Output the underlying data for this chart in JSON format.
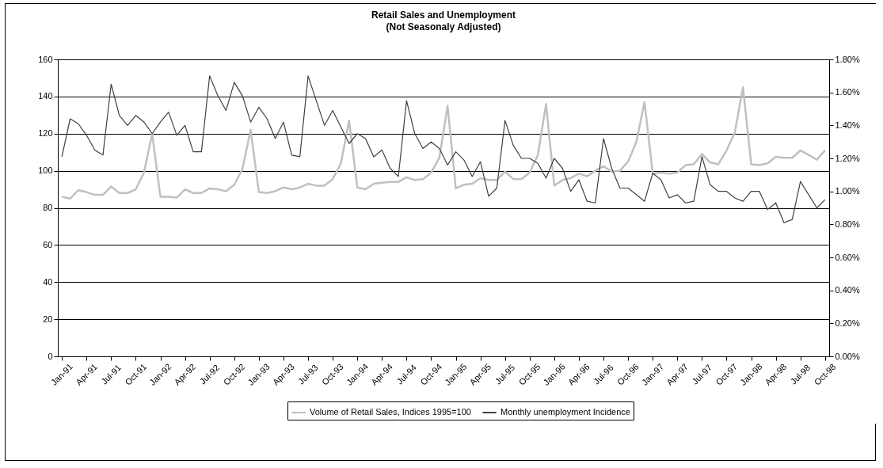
{
  "chart_data": {
    "type": "line",
    "title": "Retail Sales and Unemployment",
    "subtitle": "(Not Seasonaly Adjusted)",
    "categories": [
      "Jan-91",
      null,
      null,
      "Apr-91",
      null,
      null,
      "Jul-91",
      null,
      null,
      "Oct-91",
      null,
      null,
      "Jan-92",
      null,
      null,
      "Apr-92",
      null,
      null,
      "Jul-92",
      null,
      null,
      "Oct-92",
      null,
      null,
      "Jan-93",
      null,
      null,
      "Apr-93",
      null,
      null,
      "Jul-93",
      null,
      null,
      "Oct-93",
      null,
      null,
      "Jan-94",
      null,
      null,
      "Apr-94",
      null,
      null,
      "Jul-94",
      null,
      null,
      "Oct-94",
      null,
      null,
      "Jan-95",
      null,
      null,
      "Apr-95",
      null,
      null,
      "Jul-95",
      null,
      null,
      "Oct-95",
      null,
      null,
      "Jan-96",
      null,
      null,
      "Apr-96",
      null,
      null,
      "Jul-96",
      null,
      null,
      "Oct-96",
      null,
      null,
      "Jan-97",
      null,
      null,
      "Apr-97",
      null,
      null,
      "Jul-97",
      null,
      null,
      "Oct-97",
      null,
      null,
      "Jan-98",
      null,
      null,
      "Apr-98",
      null,
      null,
      "Jul-98",
      null,
      null,
      "Oct-98"
    ],
    "series": [
      {
        "name": "Volume of Retail Sales, Indices 1995=100",
        "color": "#c0c0c0",
        "values": [
          86,
          85,
          89.5,
          88.5,
          87,
          87,
          91.5,
          88,
          88,
          90,
          99,
          120,
          86,
          86,
          85.5,
          90,
          88,
          88,
          90.5,
          90,
          89,
          92.5,
          101,
          122,
          88.5,
          88,
          89,
          91,
          90,
          91,
          93,
          92,
          92,
          95.5,
          104,
          127,
          91,
          90,
          93,
          93.5,
          94,
          94,
          96.5,
          95,
          95.5,
          99,
          107,
          135,
          90.5,
          92.5,
          93,
          96,
          95,
          95,
          99.5,
          95.5,
          95.5,
          99,
          108.5,
          136,
          92,
          95,
          96,
          98.5,
          97,
          100,
          102.5,
          99.5,
          100,
          105,
          115.5,
          137,
          98.5,
          99,
          98.5,
          99,
          103,
          103.5,
          109,
          104.5,
          103.5,
          111,
          120.5,
          145,
          103.5,
          103,
          104,
          107.5,
          107,
          107,
          111,
          108.5,
          106,
          111
        ]
      },
      {
        "name": "Monthly unemployment Incidence",
        "color": "#404040",
        "axis": "y2",
        "values": [
          1.21,
          1.44,
          1.41,
          1.34,
          1.25,
          1.22,
          1.65,
          1.46,
          1.4,
          1.46,
          1.42,
          1.35,
          1.42,
          1.48,
          1.34,
          1.4,
          1.24,
          1.24,
          1.7,
          1.58,
          1.49,
          1.66,
          1.58,
          1.42,
          1.51,
          1.44,
          1.32,
          1.42,
          1.22,
          1.21,
          1.7,
          1.55,
          1.4,
          1.49,
          1.39,
          1.29,
          1.35,
          1.32,
          1.21,
          1.25,
          1.14,
          1.09,
          1.55,
          1.35,
          1.26,
          1.3,
          1.26,
          1.16,
          1.24,
          1.19,
          1.09,
          1.18,
          0.97,
          1.02,
          1.43,
          1.28,
          1.2,
          1.2,
          1.17,
          1.08,
          1.2,
          1.14,
          1.0,
          1.07,
          0.94,
          0.93,
          1.32,
          1.14,
          1.02,
          1.02,
          0.98,
          0.94,
          1.11,
          1.07,
          0.96,
          0.98,
          0.93,
          0.94,
          1.21,
          1.04,
          1.0,
          1.0,
          0.96,
          0.94,
          1.0,
          1.0,
          0.89,
          0.93,
          0.81,
          0.83,
          1.06,
          0.98,
          0.9,
          0.95
        ]
      }
    ],
    "ylim": [
      0,
      160
    ],
    "yticks": [
      0,
      20,
      40,
      60,
      80,
      100,
      120,
      140,
      160
    ],
    "y2lim": [
      0,
      1.8
    ],
    "y2ticks": [
      {
        "value": 0,
        "label": "0.00%"
      },
      {
        "value": 0.2,
        "label": "0.20%"
      },
      {
        "value": 0.4,
        "label": "0.40%"
      },
      {
        "value": 0.6,
        "label": "0.60%"
      },
      {
        "value": 0.8,
        "label": "0.80%"
      },
      {
        "value": 1.0,
        "label": "1.00%"
      },
      {
        "value": 1.2,
        "label": "1.20%"
      },
      {
        "value": 1.4,
        "label": "1.40%"
      },
      {
        "value": 1.6,
        "label": "1.60%"
      },
      {
        "value": 1.8,
        "label": "1.80%"
      }
    ],
    "grid": "y",
    "legend": "bottom"
  }
}
